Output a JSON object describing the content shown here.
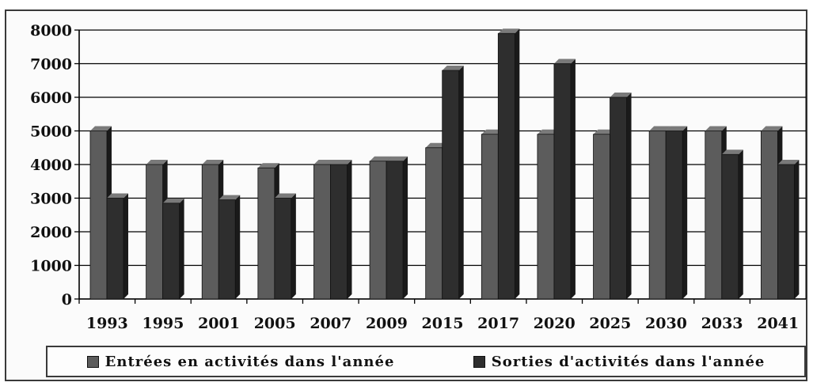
{
  "chart_data": {
    "type": "bar",
    "categories": [
      "1993",
      "1995",
      "2001",
      "2005",
      "2007",
      "2009",
      "2015",
      "2017",
      "2020",
      "2025",
      "2030",
      "2033",
      "2041"
    ],
    "series": [
      {
        "name": "Entrées en activités dans l'année",
        "values": [
          5000,
          4000,
          4000,
          3900,
          4000,
          4100,
          4500,
          4900,
          4900,
          4900,
          5000,
          5000,
          5000
        ]
      },
      {
        "name": "Sorties d'activités dans l'année",
        "values": [
          3000,
          2850,
          2950,
          3000,
          4000,
          4100,
          6800,
          7900,
          7000,
          6000,
          5000,
          4300,
          4000
        ]
      }
    ],
    "yticks": [
      "0",
      "1000",
      "2000",
      "3000",
      "4000",
      "5000",
      "6000",
      "7000",
      "8000"
    ],
    "ylim": [
      0,
      8000
    ],
    "grid": true,
    "legend": "bottom",
    "colors": {
      "entrees": "#5c5c5c",
      "sorties": "#2e2e2e",
      "grid": "#000000"
    }
  }
}
